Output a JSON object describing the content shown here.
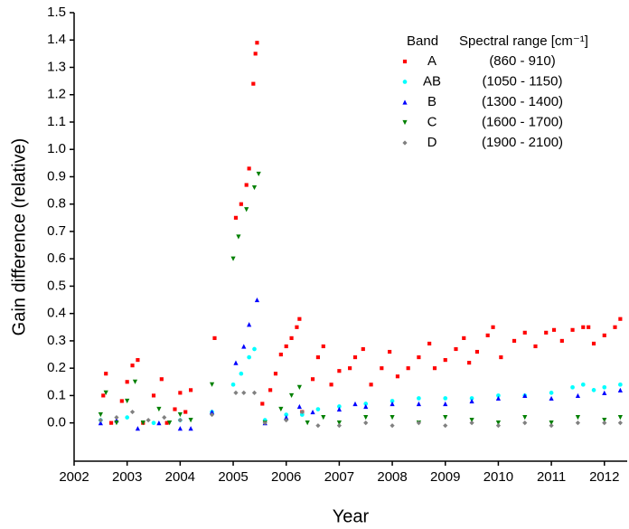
{
  "chart_data": {
    "type": "scatter",
    "x_label": "Year",
    "y_label": "Gain difference (relative)",
    "legend_header": [
      "Band",
      "Spectral range [cm⁻¹]"
    ],
    "xlim": [
      2002,
      2012.43
    ],
    "ylim": [
      -0.14,
      1.5
    ],
    "xticks": [
      2002,
      2003,
      2004,
      2005,
      2006,
      2007,
      2008,
      2009,
      2010,
      2011,
      2012
    ],
    "yticks": [
      {
        "value": 0,
        "label": "0.0"
      },
      0.1,
      0.2,
      0.3,
      0.4,
      0.5,
      0.6,
      0.7,
      0.8,
      0.9,
      {
        "value": 1,
        "label": "1.0"
      },
      1.1,
      1.2,
      1.3,
      1.4,
      1.5
    ],
    "series": [
      {
        "name": "A",
        "range": "(860 - 910)",
        "color": "#ff0000",
        "marker": "square",
        "x": [
          2002.55,
          2002.6,
          2002.7,
          2002.9,
          2003.0,
          2003.1,
          2003.2,
          2003.3,
          2003.5,
          2003.65,
          2003.75,
          2003.9,
          2004.0,
          2004.1,
          2004.2,
          2004.65,
          2005.05,
          2005.15,
          2005.25,
          2005.3,
          2005.38,
          2005.42,
          2005.45,
          2005.55,
          2005.7,
          2005.8,
          2005.9,
          2006.0,
          2006.1,
          2006.2,
          2006.25,
          2006.3,
          2006.5,
          2006.6,
          2006.7,
          2006.85,
          2007.0,
          2007.2,
          2007.3,
          2007.45,
          2007.6,
          2007.8,
          2007.95,
          2008.1,
          2008.3,
          2008.5,
          2008.7,
          2008.8,
          2009.0,
          2009.2,
          2009.35,
          2009.45,
          2009.6,
          2009.8,
          2009.9,
          2010.05,
          2010.3,
          2010.5,
          2010.7,
          2010.9,
          2011.05,
          2011.2,
          2011.4,
          2011.6,
          2011.7,
          2011.8,
          2012.0,
          2012.2,
          2012.3
        ],
        "values": [
          0.1,
          0.18,
          0.0,
          0.08,
          0.15,
          0.21,
          0.23,
          0.0,
          0.1,
          0.16,
          0.0,
          0.05,
          0.11,
          0.04,
          0.12,
          0.31,
          0.75,
          0.8,
          0.87,
          0.93,
          1.24,
          1.35,
          1.39,
          0.07,
          0.12,
          0.18,
          0.25,
          0.28,
          0.31,
          0.35,
          0.38,
          0.04,
          0.16,
          0.24,
          0.28,
          0.14,
          0.19,
          0.2,
          0.24,
          0.27,
          0.14,
          0.2,
          0.26,
          0.17,
          0.2,
          0.24,
          0.29,
          0.2,
          0.23,
          0.27,
          0.31,
          0.22,
          0.26,
          0.32,
          0.35,
          0.24,
          0.3,
          0.33,
          0.28,
          0.33,
          0.34,
          0.3,
          0.34,
          0.35,
          0.35,
          0.29,
          0.32,
          0.35,
          0.38
        ]
      },
      {
        "name": "AB",
        "range": "(1050 - 1150)",
        "color": "#00ffff",
        "marker": "circle",
        "x": [
          2002.5,
          2003.0,
          2003.5,
          2004.0,
          2004.6,
          2005.0,
          2005.15,
          2005.3,
          2005.4,
          2005.6,
          2006.0,
          2006.3,
          2006.6,
          2007.0,
          2007.5,
          2008.0,
          2008.5,
          2009.0,
          2009.5,
          2010.0,
          2010.5,
          2011.0,
          2011.4,
          2011.6,
          2011.8,
          2012.0,
          2012.3
        ],
        "values": [
          0.01,
          0.02,
          0.0,
          0.01,
          0.04,
          0.14,
          0.18,
          0.24,
          0.27,
          0.01,
          0.03,
          0.03,
          0.05,
          0.06,
          0.07,
          0.08,
          0.09,
          0.09,
          0.09,
          0.1,
          0.1,
          0.11,
          0.13,
          0.14,
          0.12,
          0.13,
          0.14
        ]
      },
      {
        "name": "B",
        "range": "(1300 - 1400)",
        "color": "#0000ff",
        "marker": "up",
        "x": [
          2002.5,
          2002.8,
          2003.2,
          2003.6,
          2004.0,
          2004.2,
          2004.6,
          2005.05,
          2005.2,
          2005.3,
          2005.45,
          2005.6,
          2006.0,
          2006.25,
          2006.5,
          2007.0,
          2007.3,
          2007.5,
          2008.0,
          2008.5,
          2009.0,
          2009.5,
          2010.0,
          2010.5,
          2011.0,
          2011.5,
          2012.0,
          2012.3
        ],
        "values": [
          0.0,
          0.01,
          -0.02,
          0.0,
          -0.02,
          -0.02,
          0.04,
          0.22,
          0.28,
          0.36,
          0.45,
          0.0,
          0.02,
          0.06,
          0.04,
          0.05,
          0.07,
          0.06,
          0.07,
          0.07,
          0.07,
          0.08,
          0.09,
          0.1,
          0.09,
          0.1,
          0.11,
          0.12
        ]
      },
      {
        "name": "C",
        "range": "(1600 - 1700)",
        "color": "#008000",
        "marker": "down",
        "x": [
          2002.5,
          2002.6,
          2002.8,
          2003.0,
          2003.15,
          2003.3,
          2003.6,
          2003.8,
          2004.0,
          2004.2,
          2004.6,
          2005.0,
          2005.1,
          2005.25,
          2005.4,
          2005.48,
          2005.6,
          2005.9,
          2006.1,
          2006.25,
          2006.4,
          2006.7,
          2007.0,
          2007.5,
          2008.0,
          2008.5,
          2009.0,
          2009.5,
          2010.0,
          2010.5,
          2011.0,
          2011.5,
          2012.0,
          2012.3
        ],
        "values": [
          0.03,
          0.11,
          0.0,
          0.08,
          0.15,
          0.0,
          0.05,
          0.0,
          0.03,
          0.01,
          0.14,
          0.6,
          0.68,
          0.78,
          0.86,
          0.91,
          0.0,
          0.05,
          0.1,
          0.13,
          0.0,
          0.02,
          0.0,
          0.02,
          0.02,
          0.0,
          0.02,
          0.01,
          0.0,
          0.02,
          0.0,
          0.02,
          0.01,
          0.02
        ]
      },
      {
        "name": "D",
        "range": "(1900 - 2100)",
        "color": "#808080",
        "marker": "diamond",
        "x": [
          2002.5,
          2002.8,
          2003.1,
          2003.4,
          2003.7,
          2004.0,
          2004.6,
          2005.05,
          2005.2,
          2005.4,
          2005.6,
          2006.0,
          2006.3,
          2006.6,
          2007.0,
          2007.5,
          2008.0,
          2008.5,
          2009.0,
          2009.5,
          2010.0,
          2010.5,
          2011.0,
          2011.5,
          2012.0,
          2012.3
        ],
        "values": [
          0.01,
          0.02,
          0.04,
          0.01,
          0.02,
          0.01,
          0.03,
          0.11,
          0.11,
          0.11,
          0.0,
          0.01,
          0.04,
          -0.01,
          -0.01,
          0.0,
          -0.01,
          0.0,
          -0.01,
          0.0,
          -0.01,
          0.0,
          -0.01,
          0.0,
          0.0,
          0.0
        ]
      }
    ]
  }
}
